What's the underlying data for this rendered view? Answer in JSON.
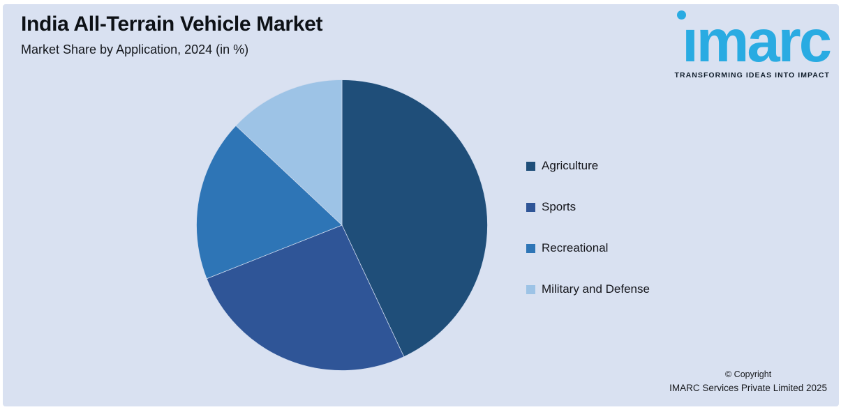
{
  "header": {
    "title": "India All-Terrain Vehicle Market",
    "subtitle": "Market Share by Application, 2024 (in %)"
  },
  "logo": {
    "wordmark": "imarc",
    "wordmark_display": "ımarc",
    "tagline": "TRANSFORMING IDEAS INTO IMPACT",
    "brand_color": "#29ABE2"
  },
  "chart_data": {
    "type": "pie",
    "title": "India All-Terrain Vehicle Market",
    "subtitle": "Market Share by Application, 2024 (in %)",
    "unit": "%",
    "labels": [
      "Agriculture",
      "Sports",
      "Recreational",
      "Military and Defense"
    ],
    "values": [
      43,
      26,
      18,
      13
    ],
    "colors": [
      "#1F4E79",
      "#2F5597",
      "#2E75B6",
      "#9DC3E6"
    ],
    "start_angle_deg": 0,
    "direction": "clockwise",
    "legend_position": "right",
    "data_labels_shown": false
  },
  "footer": {
    "line1": "© Copyright",
    "line2": "IMARC Services Private Limited 2025"
  },
  "theme": {
    "page_bg": "#FFFFFF",
    "panel_bg": "#D9E1F1",
    "text_dark": "#0D1116",
    "slice_divider": "#D0DBEE"
  }
}
